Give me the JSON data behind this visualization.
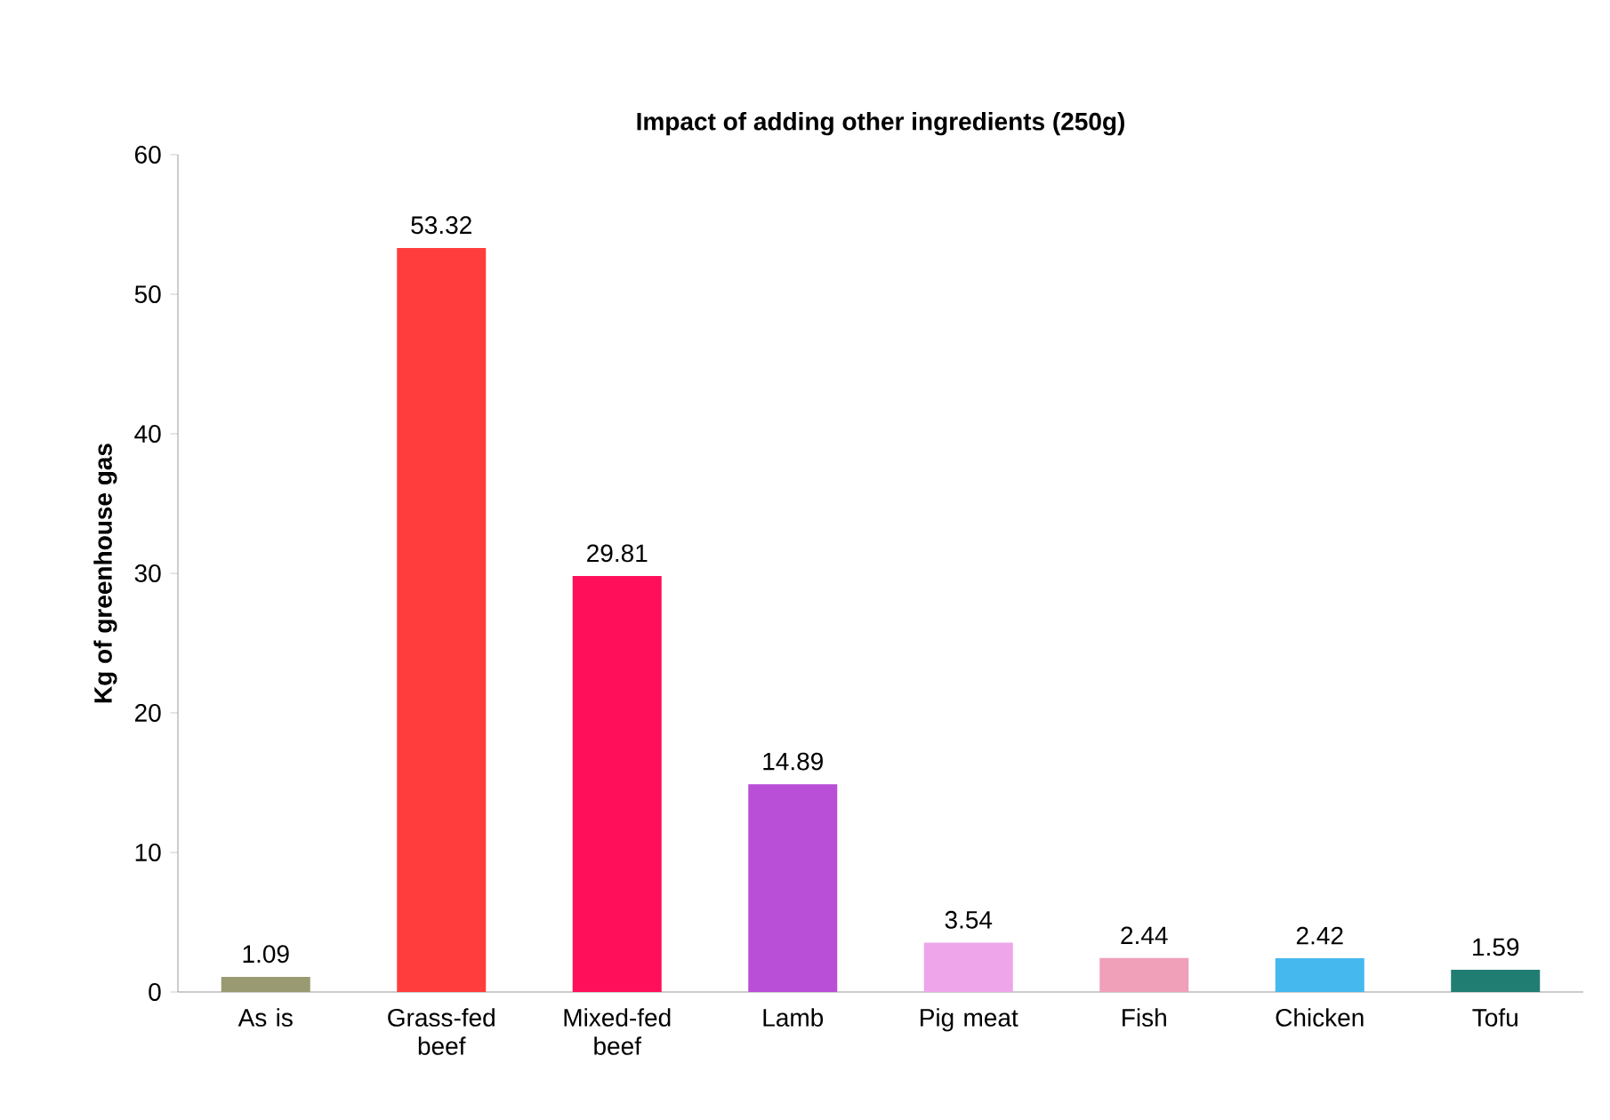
{
  "chart_data": {
    "type": "bar",
    "title": "Impact of adding other ingredients (250g)",
    "ylabel": "Kg of greenhouse gas",
    "categories": [
      "As is",
      "Grass-fed beef",
      "Mixed-fed beef",
      "Lamb",
      "Pig meat",
      "Fish",
      "Chicken",
      "Tofu"
    ],
    "values": [
      1.09,
      53.32,
      29.81,
      14.89,
      3.54,
      2.44,
      2.42,
      1.59
    ],
    "colors": [
      "#9a9a72",
      "#ff3d3d",
      "#ff0f5a",
      "#b94fd6",
      "#eea5ea",
      "#f0a0b8",
      "#45b8ee",
      "#1f7d72"
    ],
    "ylim": [
      0,
      60
    ],
    "yticks": [
      0,
      10,
      20,
      30,
      40,
      50,
      60
    ],
    "data_labels": true
  }
}
